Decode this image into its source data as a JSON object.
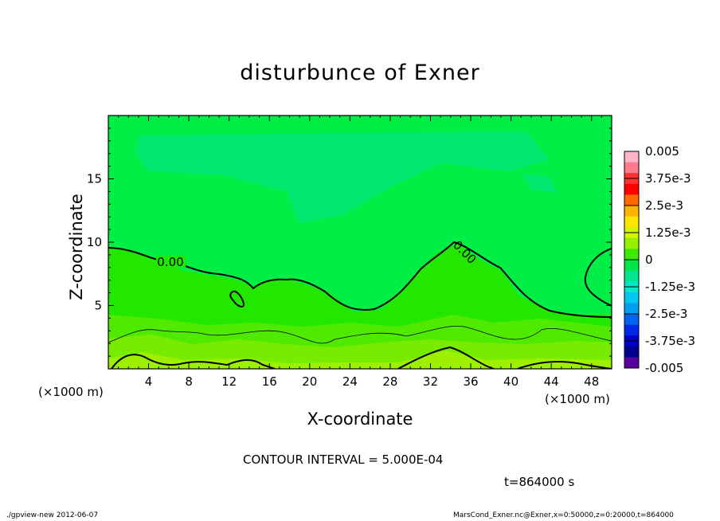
{
  "chart_data": {
    "type": "contour",
    "title": "disturbunce of Exner",
    "xlabel": "X-coordinate",
    "ylabel": "Z-coordinate",
    "xunit_left": "(×1000 m)",
    "xunit_right": "(×1000 m)",
    "xlim": [
      0,
      50
    ],
    "ylim": [
      0,
      20
    ],
    "xticks": [
      4,
      8,
      12,
      16,
      20,
      24,
      28,
      32,
      36,
      40,
      44,
      48
    ],
    "yticks": [
      5,
      10,
      15
    ],
    "contour_label": "0.00",
    "contour_interval_text": "CONTOUR INTERVAL = 5.000E-04",
    "time_text": "t=864000 s",
    "colorbar": {
      "labels": [
        "0.005",
        "3.75e-3",
        "2.5e-3",
        "1.25e-3",
        "0",
        "-1.25e-3",
        "-2.5e-3",
        "-3.75e-3",
        "-0.005"
      ],
      "colors": [
        "#ffb4c8",
        "#ff7a8c",
        "#ff3232",
        "#ff0000",
        "#ff6a00",
        "#ffb400",
        "#ffe600",
        "#d2f500",
        "#96f000",
        "#3cec00",
        "#00e646",
        "#00e68c",
        "#00e6c8",
        "#00c8f0",
        "#00a0f0",
        "#0064f0",
        "#0028e6",
        "#0000c8",
        "#00008c",
        "#5a00a0"
      ]
    },
    "footer_left": "./gpview-new   2012-06-07",
    "footer_right": "MarsCond_Exner.nc@Exner,x=0:50000,z=0:20000,t=864000"
  }
}
